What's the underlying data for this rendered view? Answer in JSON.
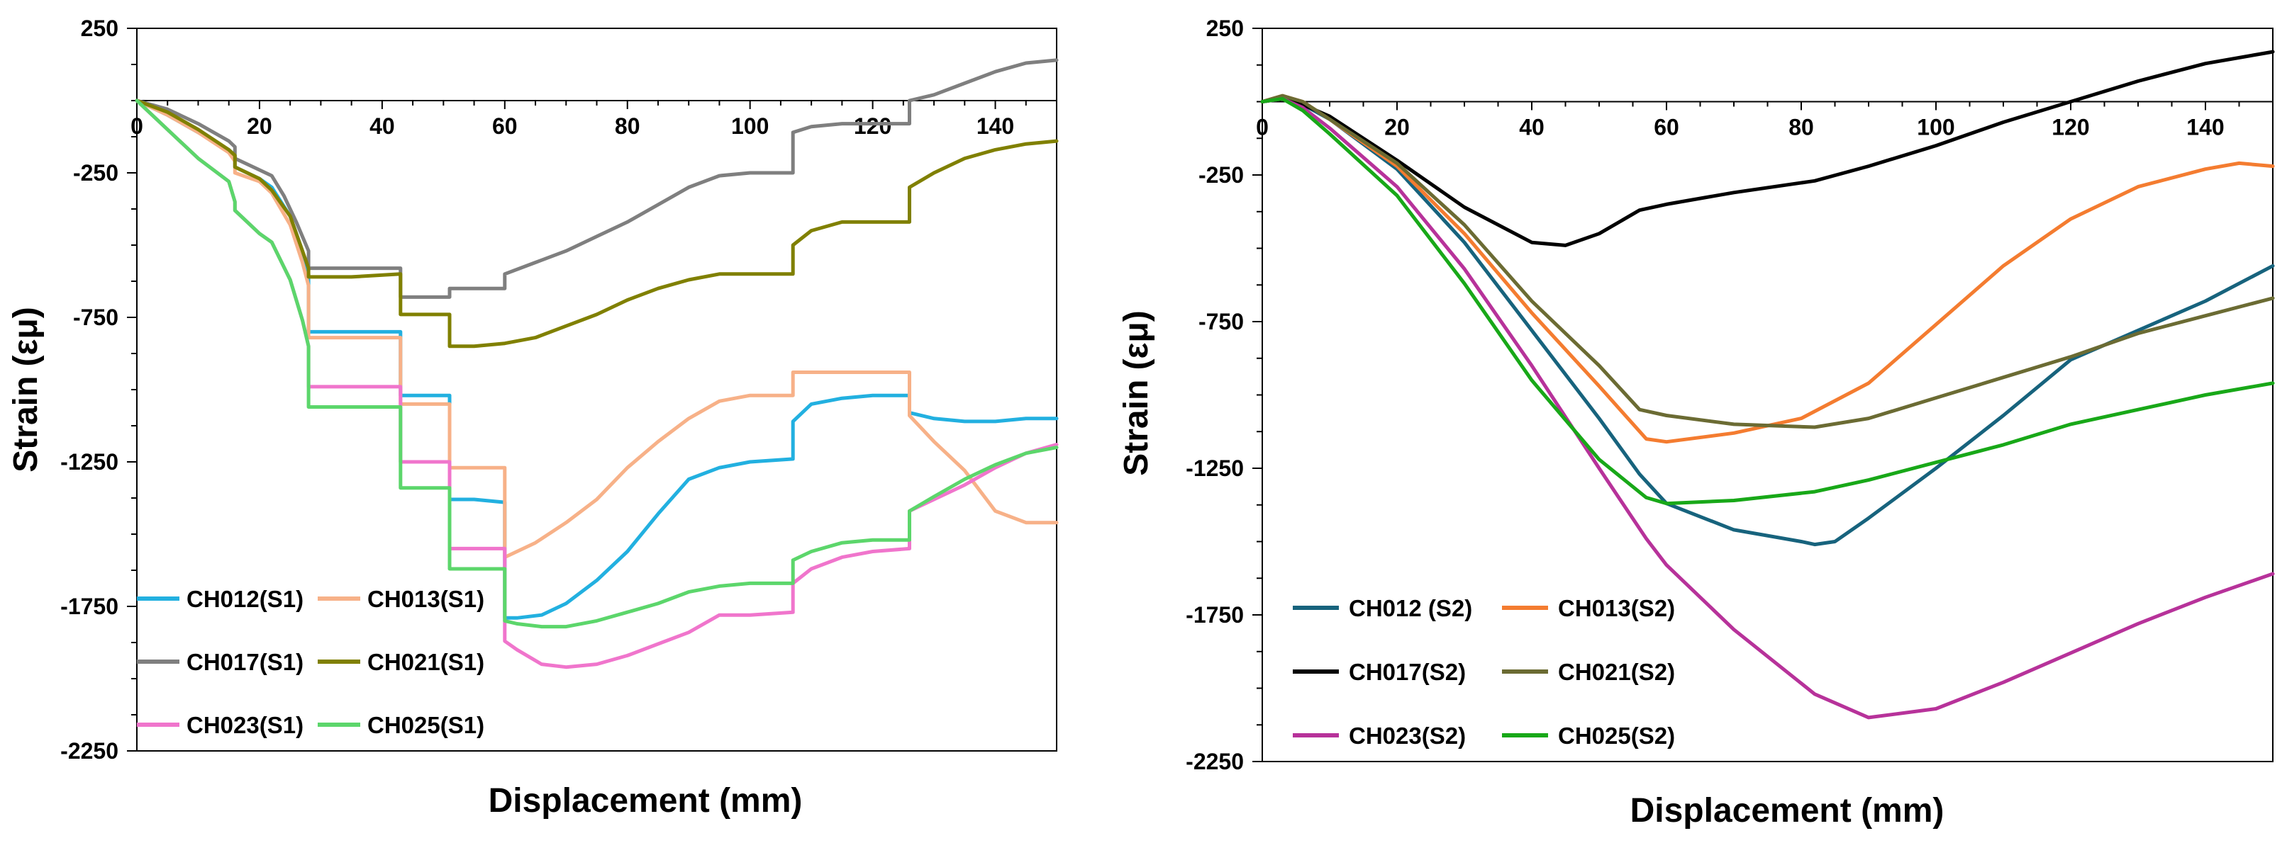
{
  "chart_data": [
    {
      "type": "line",
      "title": "",
      "xlabel": "Displacement (mm)",
      "ylabel": "Strain (εμ)",
      "xlim": [
        0,
        150
      ],
      "ylim": [
        -2250,
        250
      ],
      "xticks": [
        0,
        20,
        40,
        60,
        80,
        100,
        120,
        140
      ],
      "yticks": [
        250,
        -250,
        -750,
        -1250,
        -1750,
        -2250
      ],
      "legend_position": "bottom-left",
      "grid": false,
      "series": [
        {
          "name": "CH012(S1)",
          "color": "#22b0e0",
          "x": [
            0,
            5,
            10,
            15,
            16,
            16,
            20,
            22,
            25,
            27,
            28,
            28,
            35,
            43,
            43,
            50,
            51,
            51,
            55,
            60,
            60,
            62,
            66,
            70,
            75,
            80,
            85,
            90,
            95,
            100,
            107,
            107,
            110,
            115,
            120,
            126,
            126,
            130,
            135,
            140,
            145,
            150
          ],
          "y": [
            0,
            -50,
            -110,
            -170,
            -190,
            -230,
            -270,
            -300,
            -400,
            -520,
            -600,
            -800,
            -800,
            -800,
            -1020,
            -1020,
            -1020,
            -1380,
            -1380,
            -1390,
            -1790,
            -1790,
            -1780,
            -1740,
            -1660,
            -1560,
            -1430,
            -1310,
            -1270,
            -1250,
            -1240,
            -1110,
            -1050,
            -1030,
            -1020,
            -1020,
            -1080,
            -1100,
            -1110,
            -1110,
            -1100,
            -1100
          ]
        },
        {
          "name": "CH013(S1)",
          "color": "#f7b188",
          "x": [
            0,
            5,
            10,
            15,
            16,
            16,
            20,
            22,
            25,
            27,
            28,
            28,
            35,
            43,
            43,
            50,
            51,
            51,
            55,
            60,
            60,
            65,
            70,
            75,
            80,
            85,
            90,
            95,
            100,
            107,
            107,
            110,
            115,
            120,
            126,
            126,
            130,
            135,
            140,
            145,
            150
          ],
          "y": [
            0,
            -50,
            -110,
            -180,
            -210,
            -250,
            -280,
            -320,
            -430,
            -560,
            -640,
            -820,
            -820,
            -820,
            -1050,
            -1050,
            -1050,
            -1270,
            -1270,
            -1270,
            -1580,
            -1530,
            -1460,
            -1380,
            -1270,
            -1180,
            -1100,
            -1040,
            -1020,
            -1020,
            -940,
            -940,
            -940,
            -940,
            -940,
            -1090,
            -1180,
            -1280,
            -1420,
            -1460,
            -1460
          ]
        },
        {
          "name": "CH017(S1)",
          "color": "#7f7f7f",
          "x": [
            0,
            5,
            10,
            15,
            16,
            16,
            20,
            22,
            24,
            26,
            28,
            28,
            35,
            43,
            43,
            50,
            51,
            51,
            55,
            60,
            60,
            65,
            70,
            75,
            80,
            85,
            90,
            95,
            100,
            107,
            107,
            110,
            115,
            120,
            126,
            126,
            130,
            135,
            140,
            145,
            150
          ],
          "y": [
            0,
            -30,
            -80,
            -140,
            -160,
            -200,
            -240,
            -260,
            -330,
            -420,
            -520,
            -580,
            -580,
            -580,
            -680,
            -680,
            -680,
            -650,
            -650,
            -650,
            -600,
            -560,
            -520,
            -470,
            -420,
            -360,
            -300,
            -260,
            -250,
            -250,
            -110,
            -90,
            -80,
            -80,
            -80,
            0,
            20,
            60,
            100,
            130,
            140
          ]
        },
        {
          "name": "CH021(S1)",
          "color": "#808000",
          "x": [
            0,
            5,
            10,
            15,
            16,
            16,
            20,
            22,
            25,
            27,
            28,
            28,
            35,
            43,
            43,
            50,
            51,
            51,
            55,
            60,
            60,
            65,
            70,
            75,
            80,
            85,
            90,
            95,
            100,
            107,
            107,
            110,
            115,
            120,
            126,
            126,
            130,
            135,
            140,
            145,
            150
          ],
          "y": [
            0,
            -40,
            -100,
            -170,
            -190,
            -230,
            -270,
            -310,
            -400,
            -520,
            -580,
            -610,
            -610,
            -600,
            -740,
            -740,
            -740,
            -850,
            -850,
            -840,
            -840,
            -820,
            -780,
            -740,
            -690,
            -650,
            -620,
            -600,
            -600,
            -600,
            -500,
            -450,
            -420,
            -420,
            -420,
            -300,
            -250,
            -200,
            -170,
            -150,
            -140
          ]
        },
        {
          "name": "CH023(S1)",
          "color": "#f075cc",
          "x": [
            0,
            5,
            10,
            15,
            16,
            16,
            20,
            22,
            25,
            27,
            28,
            28,
            35,
            43,
            43,
            50,
            51,
            51,
            55,
            60,
            60,
            62,
            66,
            70,
            75,
            80,
            85,
            90,
            95,
            100,
            107,
            107,
            110,
            115,
            120,
            126,
            126,
            130,
            135,
            140,
            145,
            150
          ],
          "y": [
            0,
            -100,
            -200,
            -280,
            -350,
            -380,
            -460,
            -490,
            -620,
            -760,
            -850,
            -990,
            -990,
            -990,
            -1250,
            -1250,
            -1250,
            -1550,
            -1550,
            -1550,
            -1870,
            -1900,
            -1950,
            -1960,
            -1950,
            -1920,
            -1880,
            -1840,
            -1780,
            -1780,
            -1770,
            -1670,
            -1620,
            -1580,
            -1560,
            -1550,
            -1420,
            -1380,
            -1330,
            -1270,
            -1220,
            -1190
          ]
        },
        {
          "name": "CH025(S1)",
          "color": "#5cd66b",
          "x": [
            0,
            5,
            10,
            15,
            16,
            16,
            20,
            22,
            25,
            27,
            28,
            28,
            35,
            43,
            43,
            50,
            51,
            51,
            55,
            60,
            60,
            62,
            66,
            70,
            75,
            80,
            85,
            90,
            95,
            100,
            107,
            107,
            110,
            115,
            120,
            126,
            126,
            130,
            135,
            140,
            145,
            150
          ],
          "y": [
            0,
            -100,
            -200,
            -280,
            -350,
            -380,
            -460,
            -490,
            -620,
            -760,
            -850,
            -1060,
            -1060,
            -1060,
            -1340,
            -1340,
            -1340,
            -1620,
            -1620,
            -1620,
            -1800,
            -1810,
            -1820,
            -1820,
            -1800,
            -1770,
            -1740,
            -1700,
            -1680,
            -1670,
            -1670,
            -1590,
            -1560,
            -1530,
            -1520,
            -1520,
            -1420,
            -1370,
            -1310,
            -1260,
            -1220,
            -1200
          ]
        }
      ],
      "legend": [
        {
          "label": "CH012(S1)",
          "color": "#22b0e0"
        },
        {
          "label": "CH013(S1)",
          "color": "#f7b188"
        },
        {
          "label": "CH017(S1)",
          "color": "#7f7f7f"
        },
        {
          "label": "CH021(S1)",
          "color": "#808000"
        },
        {
          "label": "CH023(S1)",
          "color": "#f075cc"
        },
        {
          "label": "CH025(S1)",
          "color": "#5cd66b"
        }
      ]
    },
    {
      "type": "line",
      "title": "",
      "xlabel": "Displacement (mm)",
      "ylabel": "Strain (εμ)",
      "xlim": [
        0,
        150
      ],
      "ylim": [
        -2250,
        250
      ],
      "xticks": [
        0,
        20,
        40,
        60,
        80,
        100,
        120,
        140
      ],
      "yticks": [
        250,
        -250,
        -750,
        -1250,
        -1750,
        -2250
      ],
      "legend_position": "bottom-left",
      "grid": false,
      "series": [
        {
          "name": "CH012 (S2)",
          "color": "#17637d",
          "x": [
            0,
            3,
            6,
            10,
            20,
            30,
            40,
            50,
            56,
            60,
            70,
            80,
            82,
            85,
            90,
            100,
            110,
            120,
            130,
            140,
            150
          ],
          "y": [
            0,
            10,
            -10,
            -60,
            -230,
            -480,
            -780,
            -1080,
            -1270,
            -1370,
            -1460,
            -1500,
            -1510,
            -1500,
            -1420,
            -1250,
            -1070,
            -880,
            -780,
            -680,
            -560
          ]
        },
        {
          "name": "CH013(S2)",
          "color": "#f47c30",
          "x": [
            0,
            3,
            6,
            10,
            20,
            30,
            40,
            50,
            57,
            60,
            70,
            80,
            90,
            100,
            110,
            120,
            130,
            140,
            145,
            150
          ],
          "y": [
            0,
            20,
            0,
            -60,
            -220,
            -450,
            -720,
            -970,
            -1150,
            -1160,
            -1130,
            -1080,
            -960,
            -760,
            -560,
            -400,
            -290,
            -230,
            -210,
            -220
          ]
        },
        {
          "name": "CH017(S2)",
          "color": "#000000",
          "x": [
            0,
            3,
            5,
            10,
            20,
            30,
            40,
            45,
            50,
            56,
            60,
            70,
            82,
            90,
            100,
            110,
            120,
            130,
            140,
            150
          ],
          "y": [
            0,
            10,
            0,
            -50,
            -200,
            -360,
            -480,
            -490,
            -450,
            -370,
            -350,
            -310,
            -270,
            -220,
            -150,
            -70,
            0,
            70,
            130,
            170
          ]
        },
        {
          "name": "CH021(S2)",
          "color": "#6b6b33",
          "x": [
            0,
            3,
            6,
            10,
            20,
            30,
            40,
            50,
            56,
            60,
            70,
            82,
            90,
            100,
            110,
            120,
            130,
            140,
            150
          ],
          "y": [
            0,
            20,
            0,
            -60,
            -210,
            -420,
            -680,
            -900,
            -1050,
            -1070,
            -1100,
            -1110,
            -1080,
            -1010,
            -940,
            -870,
            -790,
            -730,
            -670
          ]
        },
        {
          "name": "CH023(S2)",
          "color": "#b7329a",
          "x": [
            0,
            3,
            6,
            10,
            20,
            30,
            40,
            50,
            57,
            60,
            70,
            82,
            90,
            100,
            110,
            120,
            130,
            140,
            150
          ],
          "y": [
            0,
            10,
            -20,
            -90,
            -290,
            -570,
            -900,
            -1250,
            -1490,
            -1580,
            -1800,
            -2020,
            -2100,
            -2070,
            -1980,
            -1880,
            -1780,
            -1690,
            -1610
          ]
        },
        {
          "name": "CH025(S2)",
          "color": "#18a818",
          "x": [
            0,
            3,
            6,
            10,
            20,
            30,
            40,
            50,
            57,
            60,
            70,
            82,
            90,
            100,
            110,
            120,
            130,
            140,
            150
          ],
          "y": [
            0,
            10,
            -30,
            -110,
            -320,
            -620,
            -950,
            -1220,
            -1350,
            -1370,
            -1360,
            -1330,
            -1290,
            -1230,
            -1170,
            -1100,
            -1050,
            -1000,
            -960
          ]
        }
      ],
      "legend": [
        {
          "label": "CH012 (S2)",
          "color": "#17637d"
        },
        {
          "label": "CH013(S2)",
          "color": "#f47c30"
        },
        {
          "label": "CH017(S2)",
          "color": "#000000"
        },
        {
          "label": "CH021(S2)",
          "color": "#6b6b33"
        },
        {
          "label": "CH023(S2)",
          "color": "#b7329a"
        },
        {
          "label": "CH025(S2)",
          "color": "#18a818"
        }
      ]
    }
  ]
}
